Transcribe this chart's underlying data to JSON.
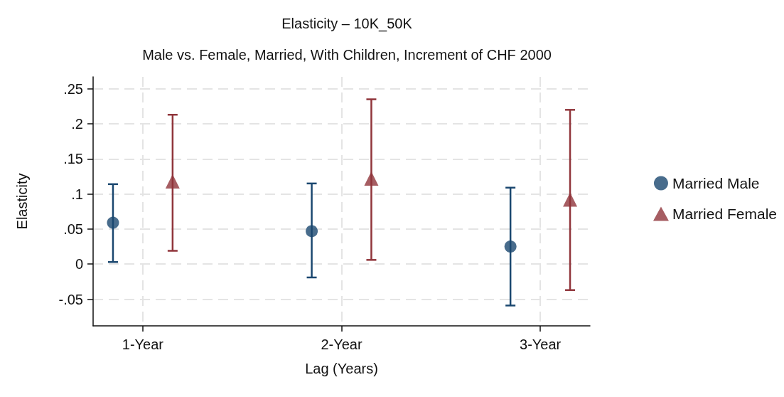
{
  "chart_data": {
    "type": "scatter",
    "title": "Elasticity – 10K_50K",
    "subtitle": "Male vs. Female, Married, With Children, Increment of CHF 2000",
    "xlabel": "Lag (Years)",
    "ylabel": "Elasticity",
    "categories": [
      "1-Year",
      "2-Year",
      "3-Year"
    ],
    "series": [
      {
        "name": "Married Male",
        "color": "#1a476f",
        "marker": "circle",
        "values": [
          0.059,
          0.047,
          0.025
        ],
        "errors": [
          [
            0.003,
            0.114
          ],
          [
            -0.019,
            0.115
          ],
          [
            -0.059,
            0.109
          ]
        ]
      },
      {
        "name": "Married Female",
        "color": "#90353b",
        "marker": "triangle",
        "values": [
          0.118,
          0.122,
          0.092
        ],
        "errors": [
          [
            0.019,
            0.213
          ],
          [
            0.006,
            0.235
          ],
          [
            -0.037,
            0.22
          ]
        ]
      }
    ],
    "ylim": [
      -0.088,
      0.267
    ],
    "yticks": [
      {
        "value": -0.05,
        "label": "-.05"
      },
      0,
      {
        "value": 0.05,
        "label": ".05"
      },
      {
        "value": 0.1,
        "label": ".1"
      },
      {
        "value": 0.15,
        "label": ".15"
      },
      {
        "value": 0.2,
        "label": ".2"
      },
      {
        "value": 0.25,
        "label": ".25"
      }
    ],
    "grid": true,
    "legend": "right"
  }
}
